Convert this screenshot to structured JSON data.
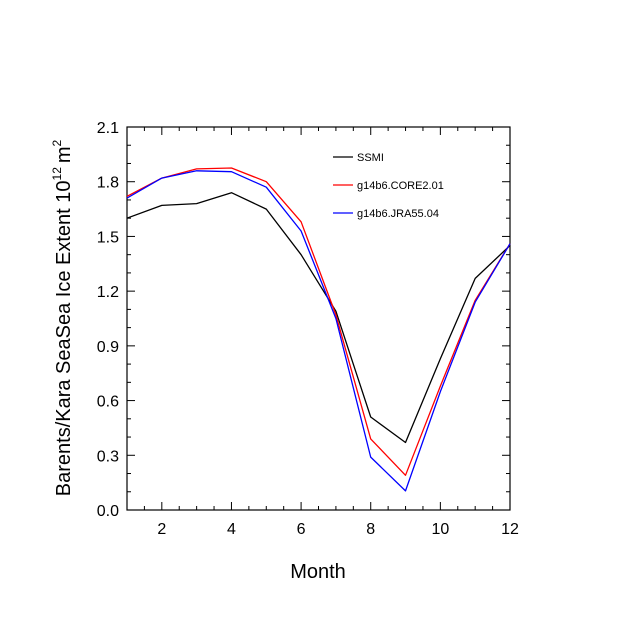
{
  "chart_data": {
    "type": "line",
    "title": "",
    "xlabel": "Month",
    "ylabel": "Barents/Kara SeaSea Ice Extent 10",
    "ylabel_exponent": "12",
    "ylabel_unit": "m",
    "ylabel_unit_exponent": "2",
    "xlim": [
      1,
      12
    ],
    "ylim": [
      0,
      2.1
    ],
    "xticks": [
      2,
      4,
      6,
      8,
      10,
      12
    ],
    "xtick_labels": [
      "2",
      "4",
      "6",
      "8",
      "10",
      "12"
    ],
    "yticks": [
      0,
      0.3,
      0.6,
      0.9,
      1.2,
      1.5,
      1.8,
      2.1
    ],
    "ytick_labels": [
      "0.0",
      "0.3",
      "0.6",
      "0.9",
      "1.2",
      "1.5",
      "1.8",
      "2.1"
    ],
    "x": [
      1,
      2,
      3,
      4,
      5,
      6,
      7,
      8,
      9,
      10,
      11,
      12
    ],
    "legend_position": "top-right",
    "series": [
      {
        "name": "SSMI",
        "color": "#000000",
        "values": [
          1.6,
          1.67,
          1.68,
          1.74,
          1.65,
          1.4,
          1.09,
          0.51,
          0.37,
          0.83,
          1.27,
          1.45
        ]
      },
      {
        "name": "g14b6.CORE2.01",
        "color": "#ff0000",
        "values": [
          1.72,
          1.82,
          1.87,
          1.875,
          1.8,
          1.58,
          1.07,
          0.39,
          0.19,
          0.68,
          1.15,
          1.46
        ]
      },
      {
        "name": "g14b6.JRA55.04",
        "color": "#0000ff",
        "values": [
          1.71,
          1.82,
          1.86,
          1.855,
          1.77,
          1.53,
          1.05,
          0.29,
          0.105,
          0.65,
          1.14,
          1.46
        ]
      }
    ]
  }
}
